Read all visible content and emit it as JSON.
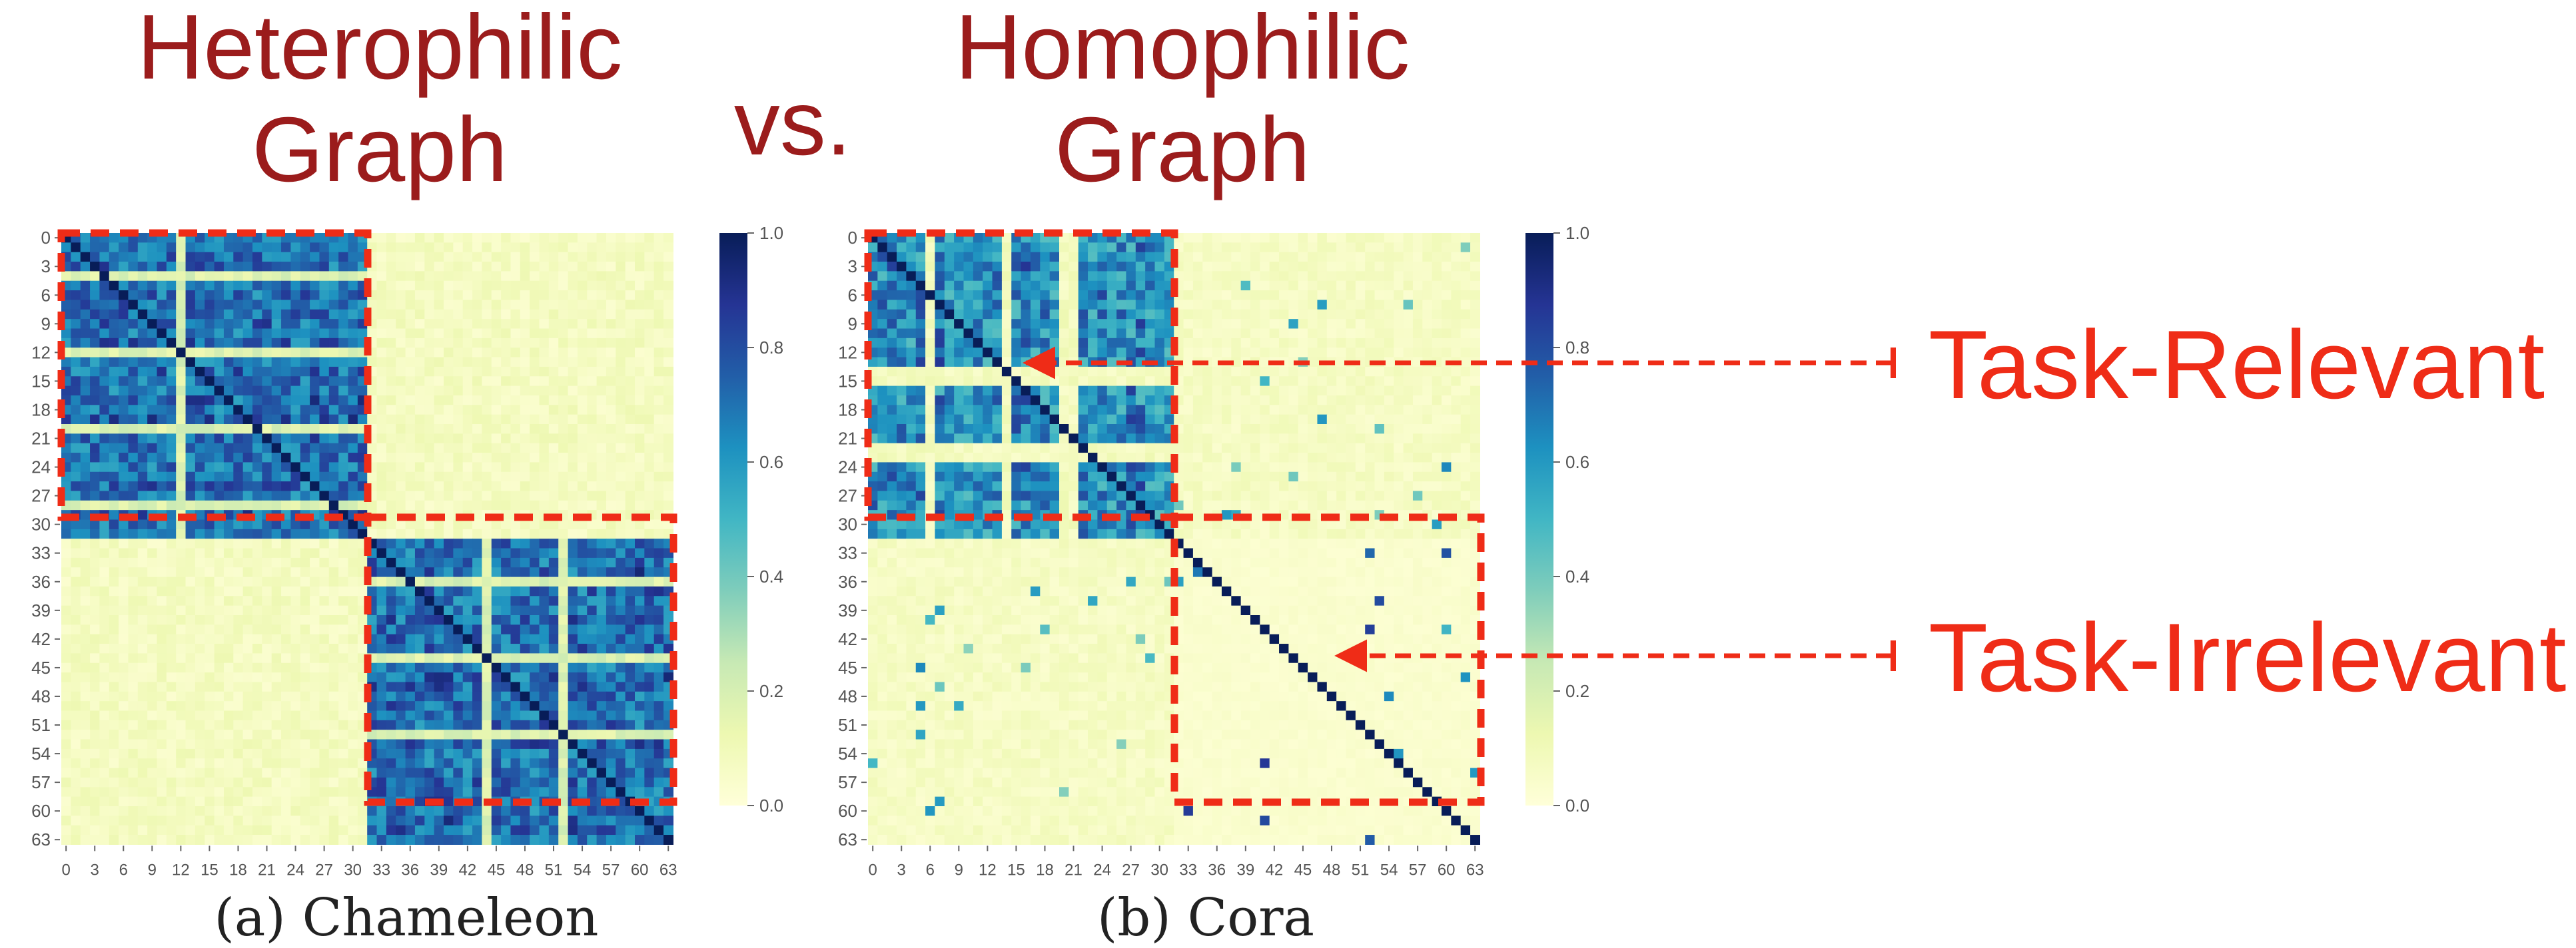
{
  "headings": {
    "left": [
      "Heterophilic",
      "Graph"
    ],
    "vs": "vs.",
    "right": [
      "Homophilic",
      "Graph"
    ]
  },
  "annotations": {
    "relevant": "Task-Relevant",
    "irrelevant": "Task-Irrelevant"
  },
  "colors": {
    "heading": "#9b1c1c",
    "annotation": "#ef2c17",
    "dashed_box": "#ef2c17",
    "cmap_low": "#ffffd9",
    "cmap_high": "#081d58"
  },
  "chart_data": [
    {
      "type": "heatmap",
      "caption": "(a) Chameleon",
      "size": 64,
      "y_ticks": [
        "0",
        "3",
        "6",
        "9",
        "12",
        "15",
        "18",
        "21",
        "24",
        "27",
        "30",
        "33",
        "36",
        "39",
        "42",
        "45",
        "48",
        "51",
        "54",
        "57",
        "60",
        "63"
      ],
      "x_ticks": [
        "0",
        "3",
        "6",
        "9",
        "12",
        "15",
        "18",
        "21",
        "24",
        "27",
        "30",
        "33",
        "36",
        "39",
        "42",
        "45",
        "48",
        "51",
        "54",
        "57",
        "60",
        "63"
      ],
      "colorbar": {
        "range": [
          0.0,
          1.0
        ],
        "ticks": [
          "0.0",
          "0.2",
          "0.4",
          "0.6",
          "0.8",
          "1.0"
        ]
      },
      "blocks": [
        {
          "rows": [
            0,
            31
          ],
          "cols": [
            0,
            31
          ],
          "level": "high"
        },
        {
          "rows": [
            32,
            63
          ],
          "cols": [
            32,
            63
          ],
          "level": "high"
        },
        {
          "rows": [
            0,
            31
          ],
          "cols": [
            32,
            63
          ],
          "level": "low"
        },
        {
          "rows": [
            32,
            63
          ],
          "cols": [
            0,
            31
          ],
          "level": "low"
        }
      ],
      "diagonal": 1.0
    },
    {
      "type": "heatmap",
      "caption": "(b) Cora",
      "size": 64,
      "y_ticks": [
        "0",
        "3",
        "6",
        "9",
        "12",
        "15",
        "18",
        "21",
        "24",
        "27",
        "30",
        "33",
        "36",
        "39",
        "42",
        "45",
        "48",
        "51",
        "54",
        "57",
        "60",
        "63"
      ],
      "x_ticks": [
        "0",
        "3",
        "6",
        "9",
        "12",
        "15",
        "18",
        "21",
        "24",
        "27",
        "30",
        "33",
        "36",
        "39",
        "42",
        "45",
        "48",
        "51",
        "54",
        "57",
        "60",
        "63"
      ],
      "colorbar": {
        "range": [
          0.0,
          1.0
        ],
        "ticks": [
          "0.0",
          "0.2",
          "0.4",
          "0.6",
          "0.8",
          "1.0"
        ]
      },
      "blocks": [
        {
          "rows": [
            0,
            31
          ],
          "cols": [
            0,
            31
          ],
          "level": "high",
          "label": "Task-Relevant"
        },
        {
          "rows": [
            32,
            63
          ],
          "cols": [
            32,
            63
          ],
          "level": "near-zero",
          "label": "Task-Irrelevant"
        },
        {
          "rows": [
            0,
            31
          ],
          "cols": [
            32,
            63
          ],
          "level": "low"
        },
        {
          "rows": [
            32,
            63
          ],
          "cols": [
            0,
            31
          ],
          "level": "low"
        }
      ],
      "diagonal": 1.0
    }
  ]
}
